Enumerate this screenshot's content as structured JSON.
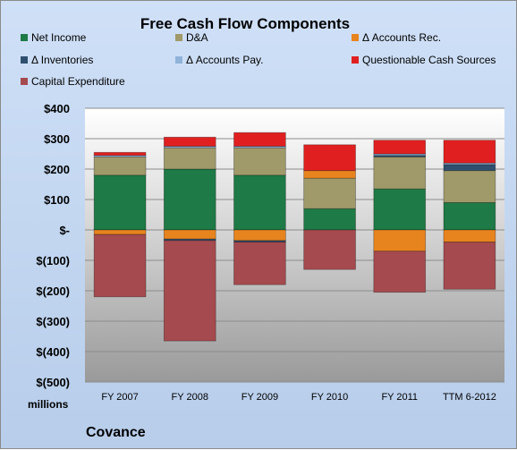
{
  "chart_data": {
    "type": "bar",
    "stacked": true,
    "title": "Free Cash Flow Components",
    "unit_label": "millions",
    "company": "Covance",
    "categories": [
      "FY 2007",
      "FY 2008",
      "FY 2009",
      "FY 2010",
      "FY 2011",
      "TTM 6-2012"
    ],
    "yticks": [
      "$400",
      "$300",
      "$200",
      "$100",
      "$-",
      "$(100)",
      "$(200)",
      "$(300)",
      "$(400)",
      "$(500)"
    ],
    "ylim": [
      -500,
      400
    ],
    "legend_position": "top",
    "series": [
      {
        "name": "Net Income",
        "color": "#1e7a46",
        "values": [
          180,
          200,
          180,
          70,
          135,
          90
        ]
      },
      {
        "name": "D&A",
        "color": "#a09a6a",
        "values": [
          60,
          70,
          90,
          100,
          105,
          105
        ]
      },
      {
        "name": "Δ Accounts Rec.",
        "color": "#e8841e",
        "values": [
          -15,
          -30,
          -35,
          25,
          -70,
          -40
        ]
      },
      {
        "name": "Δ Inventories",
        "color": "#2f4f6f",
        "values": [
          0,
          -5,
          -5,
          0,
          5,
          20
        ]
      },
      {
        "name": "Δ Accounts Pay.",
        "color": "#8fb3d9",
        "values": [
          5,
          5,
          5,
          0,
          5,
          5
        ]
      },
      {
        "name": "Questionable Cash Sources",
        "color": "#e02020",
        "values": [
          10,
          30,
          45,
          85,
          45,
          75
        ]
      },
      {
        "name": "Capital Expenditure",
        "color": "#a54a4e",
        "values": [
          -205,
          -330,
          -140,
          -130,
          -135,
          -155
        ]
      }
    ]
  }
}
